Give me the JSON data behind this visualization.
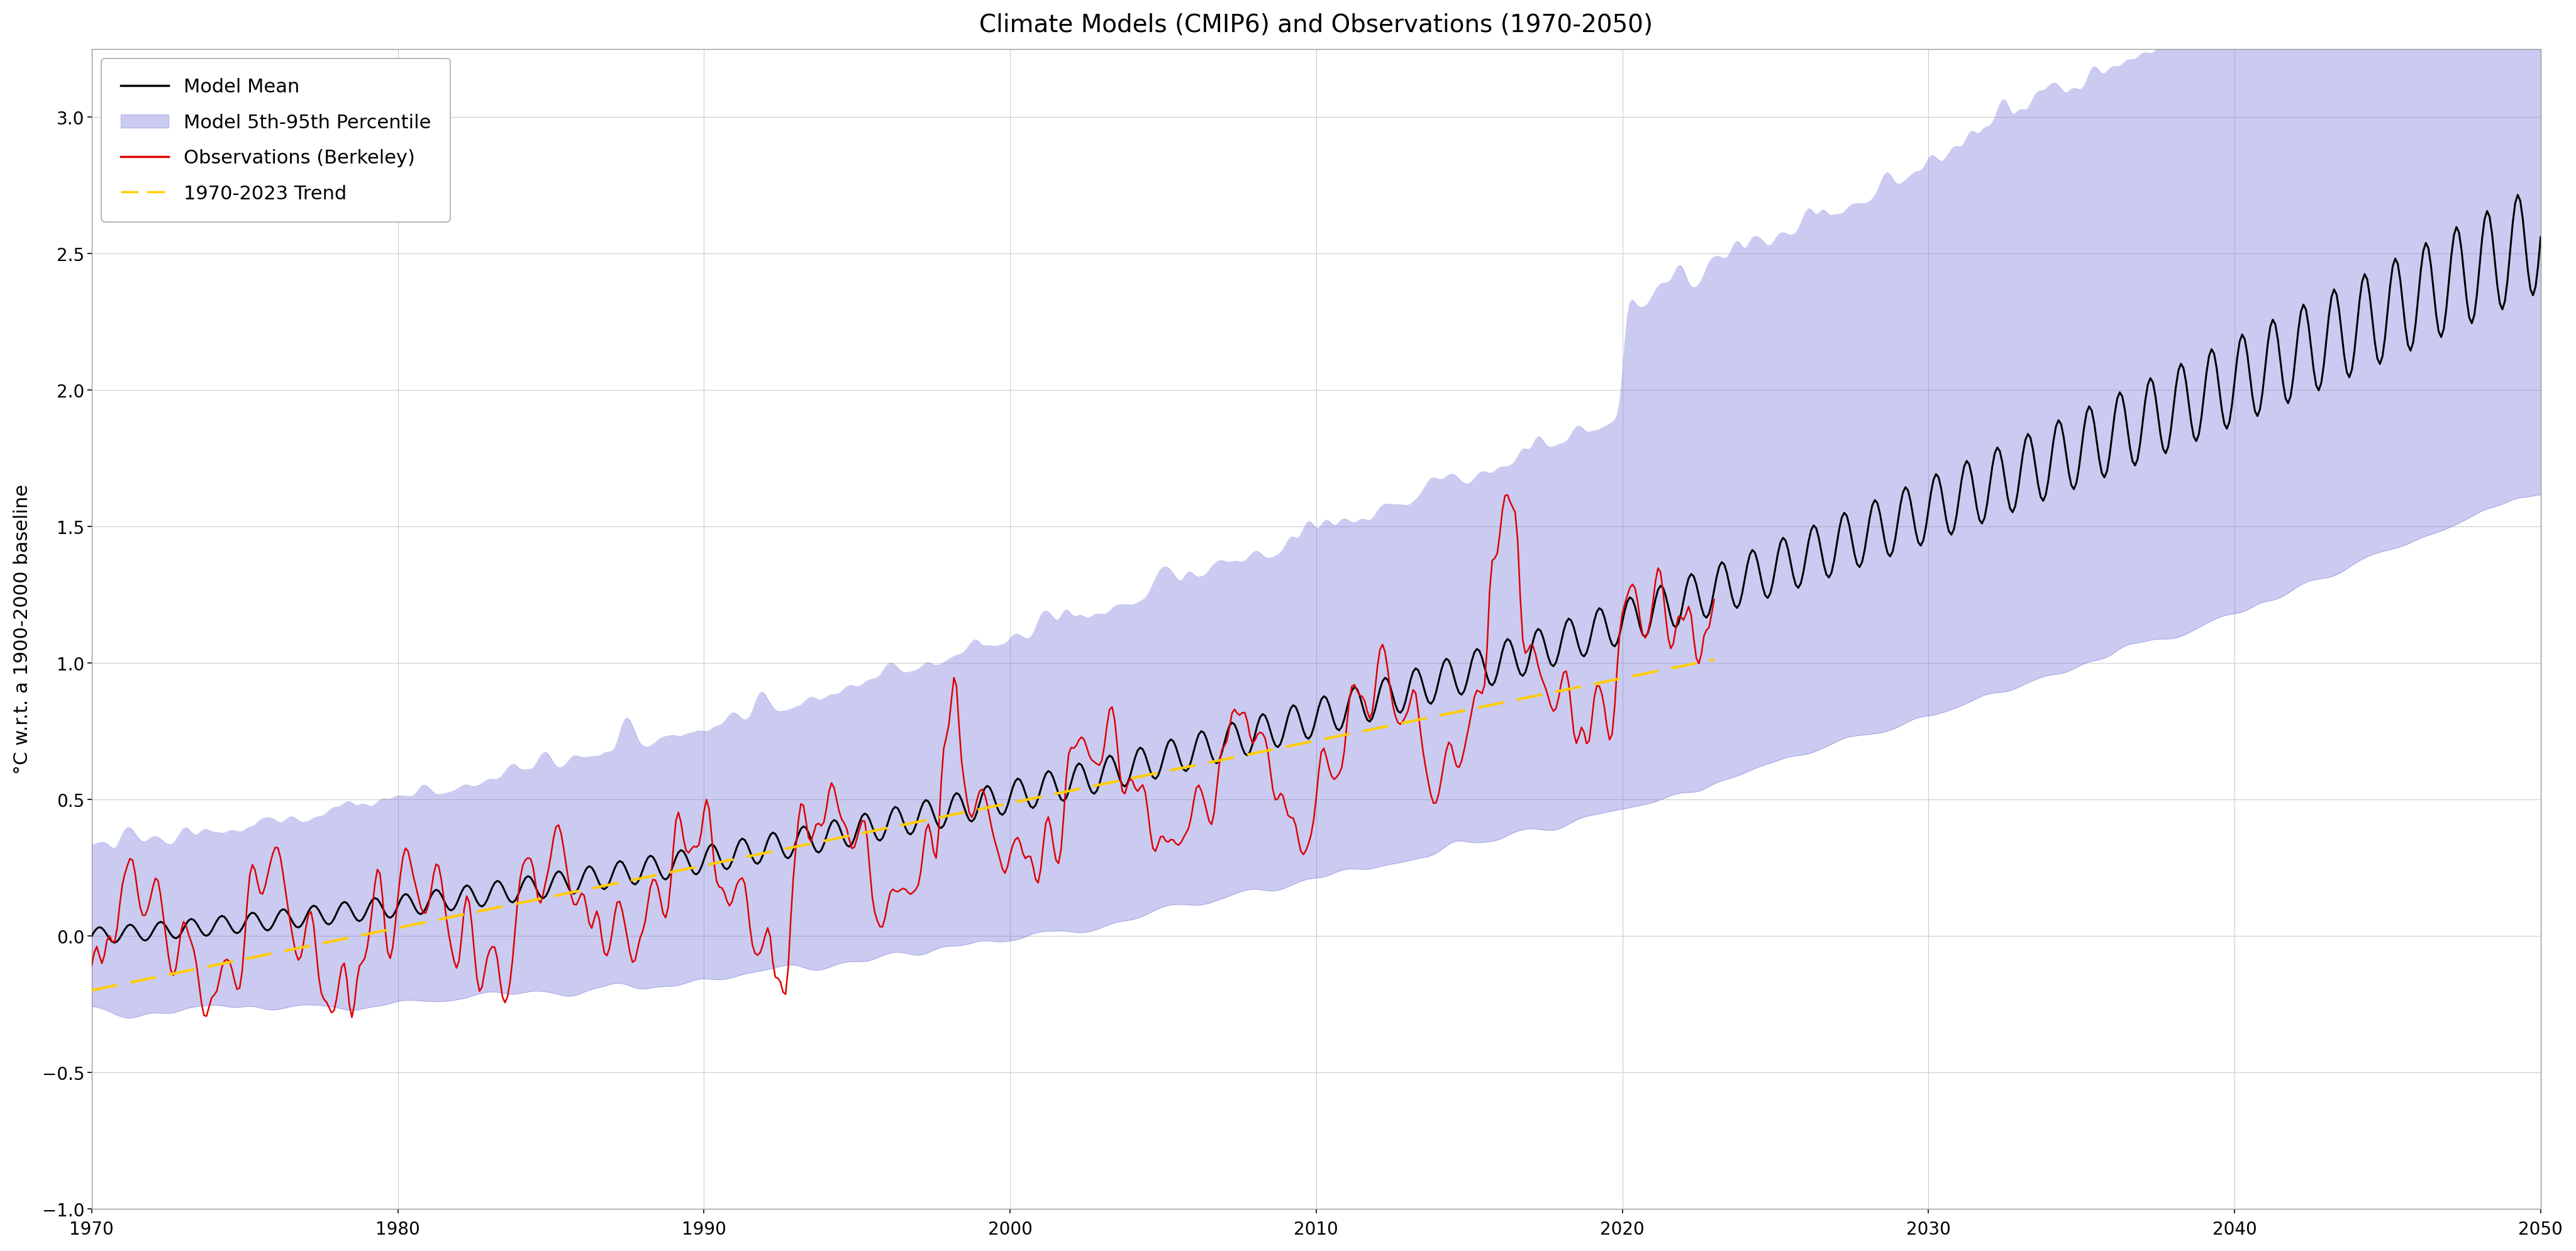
{
  "title": "Climate Models (CMIP6) and Observations (1970-2050)",
  "ylabel": "°C w.r.t. a 1900-2000 baseline",
  "xlim": [
    1970,
    2050
  ],
  "ylim": [
    -1.0,
    3.25
  ],
  "yticks": [
    -1.0,
    -0.5,
    0.0,
    0.5,
    1.0,
    1.5,
    2.0,
    2.5,
    3.0
  ],
  "xticks": [
    1970,
    1980,
    1990,
    2000,
    2010,
    2020,
    2030,
    2040,
    2050
  ],
  "background_color": "#ffffff",
  "fill_color": "#7777dd",
  "fill_alpha": 0.38,
  "model_mean_color": "#000000",
  "obs_color": "#dd0000",
  "trend_color": "#ffcc00",
  "title_fontsize": 28,
  "label_fontsize": 22,
  "tick_fontsize": 20,
  "legend_fontsize": 22,
  "seed": 42,
  "obs_end_year": 2023,
  "trend_start": 1970,
  "trend_end": 2023
}
